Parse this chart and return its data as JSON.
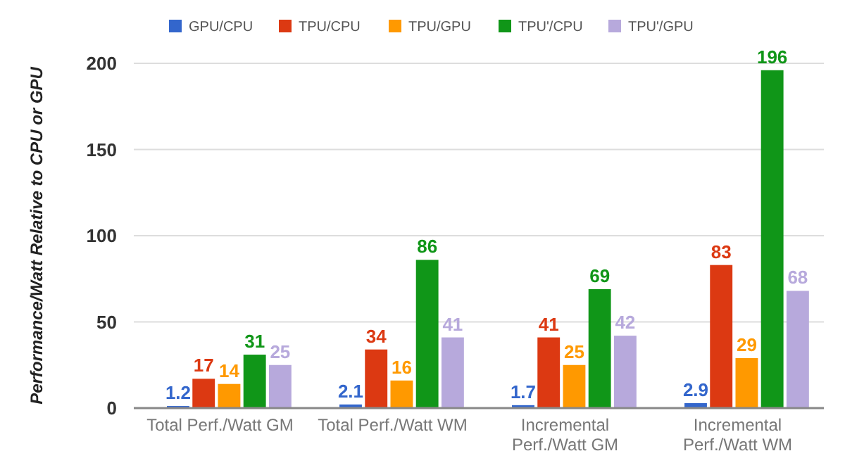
{
  "chart_data": {
    "type": "bar",
    "ylabel": "Performance/Watt Relative to CPU or GPU",
    "categories": [
      "Total Perf./Watt GM",
      "Total Perf./Watt WM",
      "Incremental Perf./Watt GM",
      "Incremental Perf./Watt WM"
    ],
    "series": [
      {
        "name": "GPU/CPU",
        "color": "#3366cc",
        "values": [
          1.2,
          2.1,
          1.7,
          2.9
        ]
      },
      {
        "name": "TPU/CPU",
        "color": "#dc3912",
        "values": [
          17,
          34,
          41,
          83
        ]
      },
      {
        "name": "TPU/GPU",
        "color": "#ff9900",
        "values": [
          14,
          16,
          25,
          29
        ]
      },
      {
        "name": "TPU'/CPU",
        "color": "#109618",
        "values": [
          31,
          86,
          69,
          196
        ]
      },
      {
        "name": "TPU'/GPU",
        "color": "#b7a9dc",
        "values": [
          25,
          41,
          42,
          68
        ]
      }
    ],
    "ylim": [
      0,
      200
    ],
    "yticks": [
      0,
      50,
      100,
      150,
      200
    ],
    "grid": true,
    "legend": "top",
    "data_labels": true
  }
}
